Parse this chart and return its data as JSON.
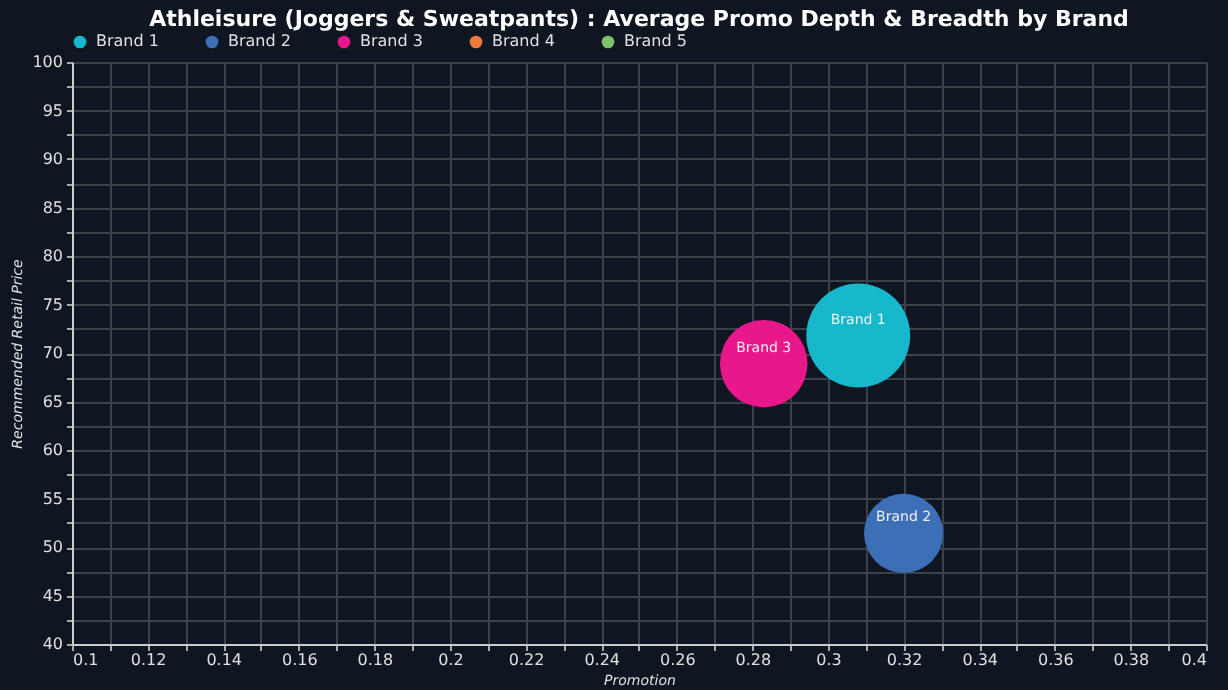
{
  "chart_data": {
    "type": "bubble",
    "title": "Athleisure (Joggers & Sweatpants) : Average Promo Depth & Breadth by Brand",
    "xlabel": "Promotion",
    "ylabel": "Recommended Retail Price",
    "xlim": [
      0.1,
      0.4
    ],
    "ylim": [
      40,
      100
    ],
    "xticks": [
      0.1,
      {
        "value": 0.11,
        "label": null
      },
      0.12,
      {
        "value": 0.13,
        "label": null
      },
      0.14,
      {
        "value": 0.15,
        "label": null
      },
      0.16,
      {
        "value": 0.17,
        "label": null
      },
      0.18,
      {
        "value": 0.19,
        "label": null
      },
      0.2,
      {
        "value": 0.21,
        "label": null
      },
      0.22,
      {
        "value": 0.23,
        "label": null
      },
      0.24,
      {
        "value": 0.25,
        "label": null
      },
      0.26,
      {
        "value": 0.27,
        "label": null
      },
      0.28,
      {
        "value": 0.29,
        "label": null
      },
      0.3,
      {
        "value": 0.31,
        "label": null
      },
      0.32,
      {
        "value": 0.33,
        "label": null
      },
      0.34,
      {
        "value": 0.35,
        "label": null
      },
      0.36,
      {
        "value": 0.37,
        "label": null
      },
      0.38,
      {
        "value": 0.39,
        "label": null
      },
      0.4
    ],
    "yticks": [
      40,
      {
        "value": 42.5,
        "label": null
      },
      45,
      {
        "value": 47.5,
        "label": null
      },
      50,
      {
        "value": 52.5,
        "label": null
      },
      55,
      {
        "value": 57.5,
        "label": null
      },
      60,
      {
        "value": 62.5,
        "label": null
      },
      65,
      {
        "value": 67.5,
        "label": null
      },
      70,
      {
        "value": 72.5,
        "label": null
      },
      75,
      {
        "value": 77.5,
        "label": null
      },
      80,
      {
        "value": 82.5,
        "label": null
      },
      85,
      {
        "value": 87.5,
        "label": null
      },
      90,
      {
        "value": 92.5,
        "label": null
      },
      95,
      {
        "value": 97.5,
        "label": null
      },
      100
    ],
    "grid": true,
    "legend": "top left",
    "marker": "circle",
    "series": [
      {
        "name": "Brand 1",
        "color": "#17b8cc",
        "x": [
          0.308
        ],
        "values": [
          71.8
        ],
        "sizes": [
          1
        ]
      },
      {
        "name": "Brand 2",
        "color": "#3d6fb6",
        "x": [
          0.32
        ],
        "values": [
          51.4
        ],
        "sizes": [
          0.58
        ]
      },
      {
        "name": "Brand 3",
        "color": "#e8178a",
        "x": [
          0.283
        ],
        "values": [
          68.9
        ],
        "sizes": [
          0.71
        ]
      },
      {
        "name": "Brand 4",
        "color": "#f07b3f"
      },
      {
        "name": "Brand 5",
        "color": "#7dc36b"
      }
    ]
  }
}
